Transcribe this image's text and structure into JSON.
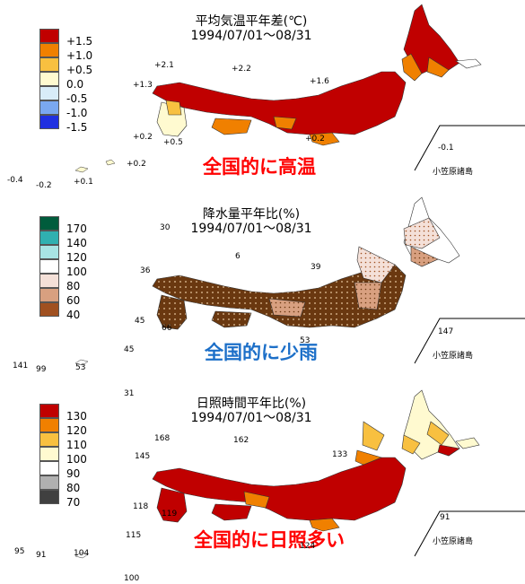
{
  "panels": [
    {
      "id": "temp",
      "title_line1": "平均気温平年差(℃)",
      "title_line2": "1994/07/01～08/31",
      "callout": "全国的に高温",
      "callout_color": "#ff0000",
      "legend": [
        {
          "label": "+1.5",
          "color": "#c00000"
        },
        {
          "label": "+1.0",
          "color": "#f08000"
        },
        {
          "label": "+0.5",
          "color": "#f8c040"
        },
        {
          "label": "0.0",
          "color": "#fffad0"
        },
        {
          "label": "-0.5",
          "color": "#d8ecf8"
        },
        {
          "label": "-1.0",
          "color": "#7aa8f0"
        },
        {
          "label": "-1.5",
          "color": "#2030e0"
        }
      ],
      "values": [
        "+2.1",
        "+2.2",
        "+1.3",
        "+1.6",
        "+0.2",
        "+0.5",
        "+0.2",
        "-0.1",
        "-0.4",
        "-0.2",
        "+0.1",
        "+0.2"
      ],
      "island_label": "小笠原諸島"
    },
    {
      "id": "prec",
      "title_line1": "降水量平年比(%)",
      "title_line2": "1994/07/01～08/31",
      "callout": "全国的に少雨",
      "callout_color": "#1c6fc8",
      "legend": [
        {
          "label": "170",
          "color": "#005c3c"
        },
        {
          "label": "140",
          "color": "#30b0b0"
        },
        {
          "label": "120",
          "color": "#a8e4e4"
        },
        {
          "label": "100",
          "color": "#ffffff"
        },
        {
          "label": "80",
          "color": "#f4e0d8"
        },
        {
          "label": "60",
          "color": "#d8a080"
        },
        {
          "label": "40",
          "color": "#a05020"
        }
      ],
      "values": [
        "30",
        "6",
        "36",
        "39",
        "45",
        "66",
        "53",
        "141",
        "99",
        "53",
        "45",
        "147"
      ],
      "island_label": "小笠原諸島"
    },
    {
      "id": "sun",
      "title_line1": "日照時間平年比(%)",
      "title_line2": "1994/07/01～08/31",
      "callout": "全国的に日照多い",
      "callout_color": "#ff0000",
      "legend": [
        {
          "label": "130",
          "color": "#c00000"
        },
        {
          "label": "120",
          "color": "#f08000"
        },
        {
          "label": "110",
          "color": "#f8c040"
        },
        {
          "label": "100",
          "color": "#fffad0"
        },
        {
          "label": "90",
          "color": "#ffffff"
        },
        {
          "label": "80",
          "color": "#b0b0b0"
        },
        {
          "label": "70",
          "color": "#404040"
        }
      ],
      "values": [
        "31",
        "168",
        "162",
        "145",
        "133",
        "118",
        "119",
        "115",
        "95",
        "91",
        "104",
        "91",
        "100",
        "124"
      ],
      "island_label": "小笠原諸島"
    }
  ]
}
